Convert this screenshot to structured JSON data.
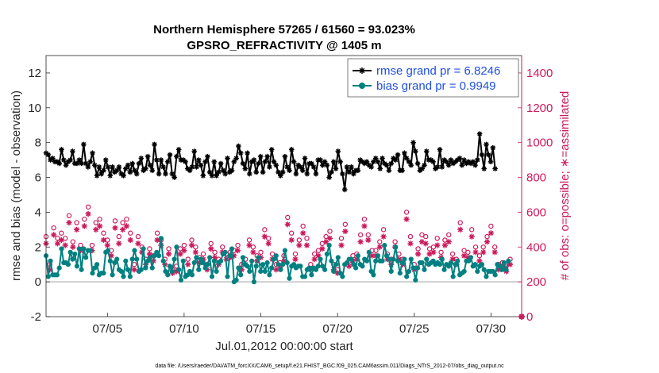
{
  "chart_data": {
    "type": "line",
    "title": "Northern Hemisphere 57265 / 61560 = 93.023%",
    "subtitle": "GPSRO_REFRACTIVITY @ 1405 m",
    "xlabel": "Jul.01,2012 00:00:00 start",
    "ylabel_left": "rmse and bias (model - observation)",
    "ylabel_right": "# of obs: o=possible; ∗=assimilated",
    "footnote": "data file: /Users/raeder/DAI/ATM_forcXX/CAM6_setup/f.e21.FHIST_BGC.f09_025.CAM6assim.011/Diags_NTrS_2012-07/obs_diag_output.nc",
    "xlim": [
      1,
      32
    ],
    "ylim_left": [
      -2,
      13
    ],
    "ylim_right": [
      0,
      1500
    ],
    "x_ticks": [
      5,
      10,
      15,
      20,
      25,
      30
    ],
    "x_tick_labels": [
      "07/05",
      "07/10",
      "07/15",
      "07/20",
      "07/25",
      "07/30"
    ],
    "y_ticks_left": [
      -2,
      0,
      2,
      4,
      6,
      8,
      10,
      12
    ],
    "y_ticks_right": [
      0,
      200,
      400,
      600,
      800,
      1000,
      1200,
      1400
    ],
    "zero_line": 0,
    "legend_position": "top-right",
    "colors": {
      "rmse": "#000000",
      "bias": "#008080",
      "obs": "#cc1a5c",
      "zero_line": "#b3b3b3",
      "right_axis": "#cc1a5c",
      "legend_text": "#1f4fe0"
    },
    "series": [
      {
        "name": "rmse grand pr = 6.8246",
        "key": "rmse",
        "values": [
          7.4,
          7.3,
          7.0,
          7.1,
          6.9,
          6.9,
          6.8,
          7.6,
          7.0,
          6.7,
          6.9,
          7.0,
          7.5,
          6.8,
          6.8,
          7.0,
          6.8,
          7.9,
          6.8,
          6.6,
          6.9,
          7.4,
          6.7,
          6.1,
          6.6,
          6.2,
          6.4,
          7.0,
          6.6,
          6.1,
          6.6,
          6.3,
          6.4,
          6.6,
          6.2,
          6.1,
          6.5,
          6.7,
          6.3,
          6.8,
          6.4,
          6.2,
          6.8,
          7.1,
          6.4,
          6.5,
          7.2,
          6.7,
          6.4,
          7.9,
          7.0,
          6.2,
          7.0,
          6.6,
          6.2,
          6.9,
          7.3,
          6.2,
          6.0,
          7.2,
          7.6,
          7.0,
          7.0,
          6.9,
          6.5,
          6.4,
          6.6,
          7.5,
          6.6,
          7.0,
          6.7,
          6.1,
          6.9,
          7.2,
          6.3,
          6.1,
          6.9,
          6.1,
          6.3,
          6.8,
          6.4,
          6.2,
          7.1,
          6.3,
          6.4,
          6.9,
          7.1,
          7.8,
          7.4,
          6.8,
          6.5,
          7.4,
          6.2,
          6.9,
          7.0,
          6.3,
          6.8,
          7.2,
          6.3,
          6.9,
          7.2,
          6.6,
          7.6,
          6.9,
          6.7,
          6.3,
          6.1,
          6.3,
          7.2,
          6.6,
          6.4,
          7.6,
          6.9,
          6.2,
          6.7,
          6.6,
          6.4,
          7.1,
          6.2,
          6.8,
          6.8,
          6.6,
          6.2,
          7.0,
          7.0,
          6.7,
          6.9,
          6.7,
          6.0,
          6.3,
          6.9,
          6.5,
          7.5,
          6.9,
          6.2,
          5.3,
          6.6,
          6.3,
          6.6,
          6.2,
          6.4,
          6.4,
          7.0,
          6.9,
          6.8,
          6.9,
          6.7,
          6.6,
          6.9,
          7.1,
          6.9,
          6.5,
          7.1,
          6.8,
          6.7,
          6.4,
          6.8,
          7.1,
          7.0,
          7.3,
          6.4,
          6.4,
          7.4,
          7.1,
          6.9,
          6.7,
          8.0,
          7.5,
          6.8,
          6.4,
          6.5,
          6.7,
          7.5,
          7.0,
          7.0,
          6.9,
          6.5,
          6.6,
          7.6,
          6.6,
          7.0,
          6.9,
          6.7,
          7.0,
          6.8,
          6.9,
          7.0,
          7.1,
          6.7,
          7.0,
          6.8,
          6.9,
          6.8,
          6.9,
          6.7,
          7.0,
          8.5,
          7.3,
          6.5,
          7.9,
          7.3,
          6.9,
          7.7,
          6.5
        ],
        "x_start": 1.0,
        "x_step": 0.1442
      },
      {
        "name": "bias grand pr = 0.9949",
        "key": "bias",
        "values": [
          1.5,
          0.3,
          1.2,
          0.4,
          0.4,
          0.4,
          0.8,
          1.9,
          1.1,
          1.1,
          1.0,
          1.7,
          1.3,
          1.6,
          0.9,
          1.9,
          0.7,
          1.9,
          1.4,
          1.8,
          1.8,
          0.5,
          0.8,
          1.0,
          0.4,
          0.5,
          0.5,
          1.7,
          1.8,
          1.2,
          0.4,
          1.1,
          1.3,
          0.7,
          0.6,
          0.3,
          1.2,
          0.7,
          0.3,
          1.3,
          1.8,
          1.3,
          0.6,
          0.7,
          1.9,
          0.8,
          1.2,
          1.4,
          0.8,
          1.5,
          1.7,
          1.5,
          2.5,
          1.2,
          0.6,
          0.4,
          0.9,
          0.6,
          1.3,
          2.0,
          0.7,
          0.1,
          1.2,
          0.3,
          0.4,
          0.6,
          0.4,
          1.1,
          1.4,
          0.7,
          1.3,
          1.1,
          0.8,
          1.0,
          1.4,
          0.3,
          1.2,
          0.6,
          1.1,
          1.2,
          1.6,
          1.7,
          0.3,
          1.5,
          1.9,
          0.0,
          0.1,
          0.8,
          0.4,
          1.4,
          1.0,
          0.9,
          0.6,
          1.2,
          0.0,
          0.9,
          1.4,
          0.6,
          1.0,
          0.6,
          1.1,
          0.4,
          0.8,
          1.3,
          1.5,
          1.0,
          0.7,
          1.0,
          1.8,
          1.1,
          0.2,
          0.9,
          1.0,
          0.8,
          0.9,
          0.9,
          0.3,
          0.3,
          0.7,
          0.8,
          0.4,
          0.8,
          0.7,
          0.9,
          1.3,
          0.9,
          0.7,
          1.6,
          2.1,
          1.2,
          0.6,
          1.0,
          1.4,
          0.5,
          0.3,
          1.0,
          1.1,
          1.3,
          1.3,
          1.0,
          0.8,
          1.5,
          1.0,
          0.9,
          1.3,
          1.2,
          1.7,
          0.6,
          0.4,
          1.2,
          1.5,
          1.2,
          1.2,
          2.1,
          1.5,
          1.3,
          0.6,
          1.3,
          2.0,
          1.2,
          0.5,
          1.1,
          1.3,
          0.3,
          0.6,
          1.3,
          0.8,
          0.1,
          0.8,
          1.1,
          1.1,
          0.7,
          1.3,
          1.0,
          1.1,
          1.2,
          1.0,
          1.1,
          1.0,
          1.3,
          0.7,
          1.0,
          0.9,
          1.1,
          0.3,
          1.0,
          1.2,
          0.4,
          0.5,
          0.6,
          1.2,
          1.2,
          1.4,
          0.9,
          1.0,
          0.6,
          0.9,
          1.0,
          0.7,
          0.3,
          0.6,
          0.6,
          0.6,
          0.4,
          1.0,
          0.9,
          0.7,
          1.1,
          0.7,
          1.2
        ],
        "x_start": 1.0,
        "x_step": 0.1442
      }
    ],
    "obs": {
      "name": "# of obs",
      "axis": "right",
      "x_start": 1.0,
      "x_step": 0.25,
      "possible": [
        460,
        300,
        510,
        450,
        480,
        450,
        580,
        430,
        540,
        410,
        560,
        630,
        410,
        540,
        560,
        480,
        440,
        380,
        550,
        460,
        540,
        560,
        480,
        300,
        460,
        400,
        330,
        390,
        350,
        480,
        440,
        330,
        390,
        270,
        290,
        390,
        410,
        330,
        440,
        400,
        340,
        360,
        300,
        420,
        370,
        330,
        400,
        360,
        370,
        380,
        410,
        300,
        330,
        440,
        400,
        350,
        370,
        500,
        450,
        360,
        300,
        310,
        350,
        570,
        480,
        360,
        440,
        520,
        450,
        300,
        360,
        380,
        420,
        460,
        490,
        300,
        270,
        450,
        530,
        320,
        350,
        360,
        470,
        560,
        470,
        380,
        380,
        430,
        500,
        360,
        330,
        430,
        360,
        330,
        600,
        460,
        300,
        390,
        470,
        460,
        390,
        400,
        450,
        370,
        440,
        470,
        360,
        330,
        540,
        380,
        370,
        500,
        400,
        350,
        400,
        460,
        520,
        400,
        300,
        310,
        290,
        330
      ],
      "assimilated": [
        420,
        270,
        470,
        420,
        440,
        410,
        540,
        400,
        500,
        380,
        520,
        590,
        380,
        500,
        520,
        440,
        410,
        350,
        510,
        420,
        500,
        520,
        440,
        270,
        420,
        370,
        300,
        360,
        320,
        440,
        410,
        300,
        360,
        250,
        260,
        360,
        380,
        300,
        410,
        370,
        310,
        330,
        270,
        390,
        340,
        300,
        370,
        330,
        340,
        350,
        380,
        270,
        300,
        410,
        370,
        320,
        340,
        460,
        420,
        330,
        270,
        280,
        320,
        530,
        440,
        330,
        410,
        480,
        410,
        270,
        330,
        350,
        390,
        430,
        450,
        270,
        250,
        410,
        490,
        290,
        320,
        330,
        430,
        520,
        440,
        350,
        350,
        400,
        460,
        330,
        300,
        400,
        330,
        300,
        560,
        420,
        270,
        360,
        430,
        420,
        360,
        370,
        410,
        340,
        410,
        430,
        330,
        300,
        500,
        350,
        340,
        460,
        370,
        320,
        370,
        430,
        480,
        370,
        270,
        280,
        260,
        300
      ],
      "end_possible_zero": 0,
      "end_assimilated_zero": 0
    }
  }
}
